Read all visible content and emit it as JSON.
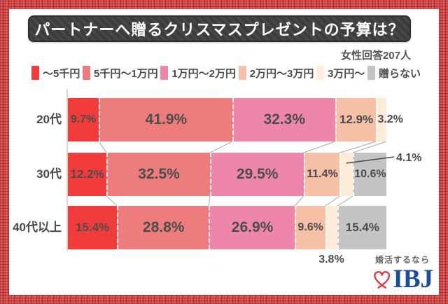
{
  "header": {
    "title": "パートナーへ贈るクリスマスプレゼントの予算は？",
    "respondents": "女性回答207人"
  },
  "chart_data": {
    "type": "bar",
    "stacked": true,
    "orientation": "horizontal",
    "unit": "%",
    "categories": [
      "20代",
      "30代",
      "40代以上"
    ],
    "series": [
      {
        "name": "～5千円",
        "color": "#f23b3b",
        "values": [
          9.7,
          12.2,
          15.4
        ]
      },
      {
        "name": "5千円～1万円",
        "color": "#ee7c7c",
        "values": [
          41.9,
          32.5,
          28.8
        ]
      },
      {
        "name": "1万円～2万円",
        "color": "#ee86ac",
        "values": [
          32.3,
          29.5,
          26.9
        ]
      },
      {
        "name": "2万円～3万円",
        "color": "#f6c0a6",
        "values": [
          12.9,
          11.4,
          9.6
        ]
      },
      {
        "name": "3万円～",
        "color": "#fcecd9",
        "values": [
          3.2,
          4.1,
          3.8
        ]
      },
      {
        "name": "贈らない",
        "color": "#c4c4c4",
        "values": [
          0,
          10.6,
          15.4
        ]
      }
    ],
    "label_placement_overrides": [
      {
        "row": 0,
        "series": 4,
        "mode": "right"
      },
      {
        "row": 1,
        "series": 4,
        "mode": "callout"
      },
      {
        "row": 2,
        "series": 4,
        "mode": "below"
      }
    ],
    "legend_position": "top",
    "grid": false
  },
  "footer": {
    "tagline": "婚活するなら",
    "logo_text": "IBJ",
    "logo_color": "#1c4c9c",
    "heart_color": "#e0303a"
  }
}
